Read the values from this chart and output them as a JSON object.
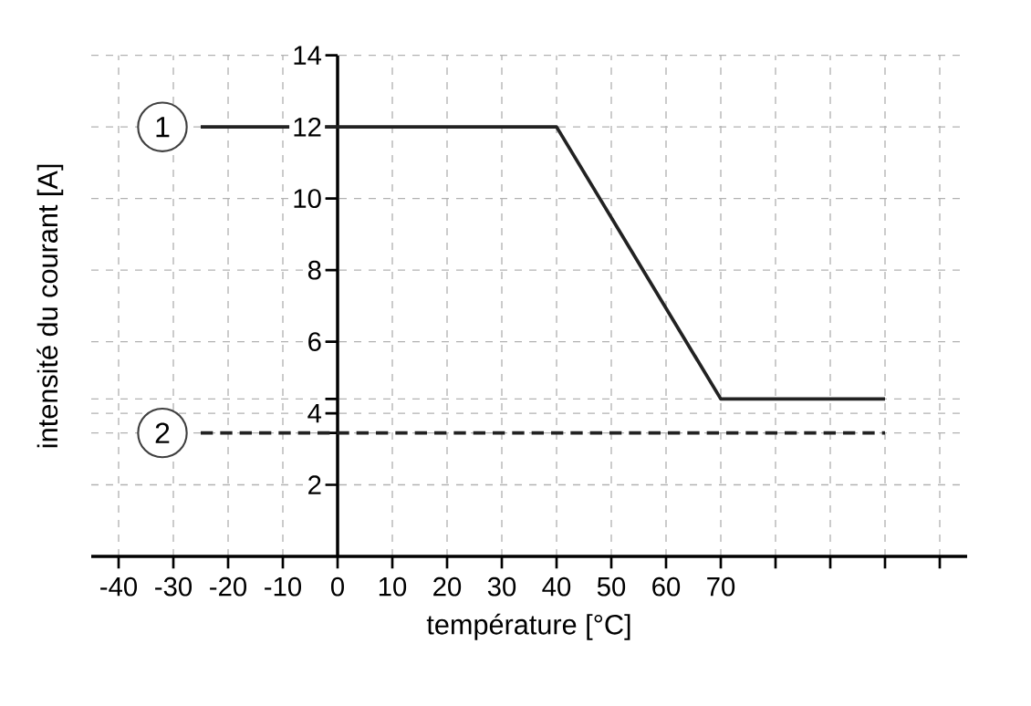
{
  "chart_data": {
    "type": "line",
    "xlabel": "température [°C]",
    "ylabel": "intensité du courant [A]",
    "series": [
      {
        "color": "#222222",
        "x": [
          -25,
          40,
          70,
          100
        ],
        "values": [
          12,
          12,
          4.4,
          4.4
        ],
        "line_style": "solid"
      },
      {
        "color": "#222222",
        "x": [
          -25,
          100
        ],
        "values": [
          3.45,
          3.45
        ],
        "line_style": "dashed"
      }
    ],
    "annotations": [
      {
        "text": "1",
        "x": -32,
        "y": 12
      },
      {
        "text": "2",
        "x": -32,
        "y": 3.45
      }
    ],
    "xlim": [
      -45,
      115
    ],
    "ylim": [
      0,
      14
    ],
    "xticks": [
      -40,
      -30,
      -20,
      -10,
      0,
      10,
      20,
      30,
      40,
      50,
      60,
      70,
      {
        "value": 80,
        "label": null
      },
      {
        "value": 90,
        "label": null
      },
      {
        "value": 100,
        "label": null
      },
      {
        "value": 110,
        "label": null
      }
    ],
    "yticks": [
      2,
      {
        "value": 3.45,
        "label": null
      },
      4,
      {
        "value": 4.4,
        "label": null
      },
      6,
      8,
      10,
      12,
      14
    ],
    "grid": true,
    "marker": "none"
  }
}
